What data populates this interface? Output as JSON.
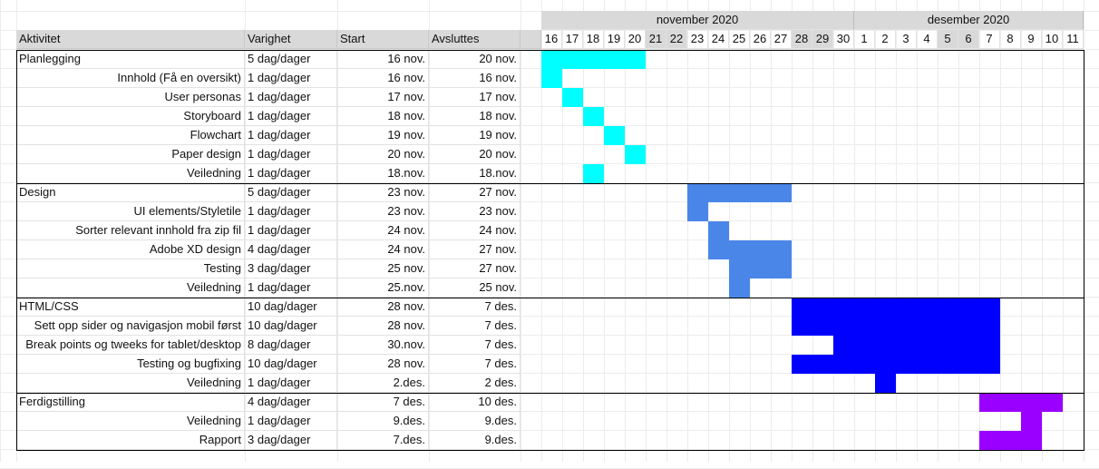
{
  "months": [
    {
      "label": "november 2020",
      "from_day_index": 0,
      "to_day_index": 14
    },
    {
      "label": "desember 2020",
      "from_day_index": 15,
      "to_day_index": 25
    }
  ],
  "columns": {
    "activity": "Aktivitet",
    "duration": "Varighet",
    "start": "Start",
    "end": "Avsluttes"
  },
  "days": [
    {
      "label": "16",
      "weekend": false
    },
    {
      "label": "17",
      "weekend": false
    },
    {
      "label": "18",
      "weekend": false
    },
    {
      "label": "19",
      "weekend": false
    },
    {
      "label": "20",
      "weekend": false
    },
    {
      "label": "21",
      "weekend": true
    },
    {
      "label": "22",
      "weekend": true
    },
    {
      "label": "23",
      "weekend": false
    },
    {
      "label": "24",
      "weekend": false
    },
    {
      "label": "25",
      "weekend": false
    },
    {
      "label": "26",
      "weekend": false
    },
    {
      "label": "27",
      "weekend": false
    },
    {
      "label": "28",
      "weekend": true
    },
    {
      "label": "29",
      "weekend": true
    },
    {
      "label": "30",
      "weekend": false
    },
    {
      "label": "1",
      "weekend": false
    },
    {
      "label": "2",
      "weekend": false
    },
    {
      "label": "3",
      "weekend": false
    },
    {
      "label": "4",
      "weekend": false
    },
    {
      "label": "5",
      "weekend": true
    },
    {
      "label": "6",
      "weekend": true
    },
    {
      "label": "7",
      "weekend": false
    },
    {
      "label": "8",
      "weekend": false
    },
    {
      "label": "9",
      "weekend": false
    },
    {
      "label": "10",
      "weekend": false
    },
    {
      "label": "11",
      "weekend": false
    }
  ],
  "groups": [
    {
      "color": "#00ffff",
      "rows": [
        {
          "name": "Planlegging",
          "indent": false,
          "duration": "5 dag/dager",
          "start": "16 nov.",
          "end": "20 nov.",
          "bar_from": 0,
          "bar_to": 4
        },
        {
          "name": "Innhold (Få en oversikt)",
          "indent": true,
          "duration": "1 dag/dager",
          "start": "16 nov.",
          "end": "16 nov.",
          "bar_from": 0,
          "bar_to": 0
        },
        {
          "name": "User personas",
          "indent": true,
          "duration": "1 dag/dager",
          "start": "17 nov.",
          "end": "17 nov.",
          "bar_from": 1,
          "bar_to": 1
        },
        {
          "name": "Storyboard",
          "indent": true,
          "duration": "1 dag/dager",
          "start": "18 nov.",
          "end": "18 nov.",
          "bar_from": 2,
          "bar_to": 2
        },
        {
          "name": "Flowchart",
          "indent": true,
          "duration": "1 dag/dager",
          "start": "19 nov.",
          "end": "19 nov.",
          "bar_from": 3,
          "bar_to": 3
        },
        {
          "name": "Paper design",
          "indent": true,
          "duration": "1 dag/dager",
          "start": "20 nov.",
          "end": "20 nov.",
          "bar_from": 4,
          "bar_to": 4
        },
        {
          "name": "Veiledning",
          "indent": true,
          "duration": "1 dag/dager",
          "start": "18.nov.",
          "end": "18.nov.",
          "bar_from": 2,
          "bar_to": 2
        }
      ]
    },
    {
      "color": "#4a86e8",
      "rows": [
        {
          "name": "Design",
          "indent": false,
          "duration": "5 dag/dager",
          "start": "23 nov.",
          "end": "27 nov.",
          "bar_from": 7,
          "bar_to": 11
        },
        {
          "name": "UI elements/Styletile",
          "indent": true,
          "duration": "1 dag/dager",
          "start": "23 nov.",
          "end": "23 nov.",
          "bar_from": 7,
          "bar_to": 7
        },
        {
          "name": "Sorter relevant innhold fra zip fil",
          "indent": true,
          "duration": "1 dag/dager",
          "start": "24 nov.",
          "end": "24 nov.",
          "bar_from": 8,
          "bar_to": 8
        },
        {
          "name": "Adobe XD design",
          "indent": true,
          "duration": "4 dag/dager",
          "start": "24 nov.",
          "end": "27 nov.",
          "bar_from": 8,
          "bar_to": 11
        },
        {
          "name": "Testing",
          "indent": true,
          "duration": "3 dag/dager",
          "start": "25 nov.",
          "end": "27 nov.",
          "bar_from": 9,
          "bar_to": 11
        },
        {
          "name": "Veiledning",
          "indent": true,
          "duration": "1 dag/dager",
          "start": "25.nov.",
          "end": "25 nov.",
          "bar_from": 9,
          "bar_to": 9
        }
      ]
    },
    {
      "color": "#0000ff",
      "rows": [
        {
          "name": "HTML/CSS",
          "indent": false,
          "duration": "10 dag/dager",
          "start": "28 nov.",
          "end": "7 des.",
          "bar_from": 12,
          "bar_to": 21
        },
        {
          "name": "Sett opp sider og navigasjon mobil først",
          "indent": true,
          "duration": "10 dag/dager",
          "start": "28 nov.",
          "end": "7 des.",
          "bar_from": 12,
          "bar_to": 21
        },
        {
          "name": "Break points og tweeks for tablet/desktop",
          "indent": true,
          "duration": "8 dag/dager",
          "start": "30.nov.",
          "end": "7 des.",
          "bar_from": 14,
          "bar_to": 21
        },
        {
          "name": "Testing og bugfixing",
          "indent": true,
          "duration": "10 dag/dager",
          "start": "28 nov.",
          "end": "7 des.",
          "bar_from": 12,
          "bar_to": 21
        },
        {
          "name": "Veiledning",
          "indent": true,
          "duration": "1 dag/dager",
          "start": "2.des.",
          "end": "2 des.",
          "bar_from": 16,
          "bar_to": 16
        }
      ]
    },
    {
      "color": "#9900ff",
      "rows": [
        {
          "name": "Ferdigstilling",
          "indent": false,
          "duration": "4 dag/dager",
          "start": "7 des.",
          "end": "10 des.",
          "bar_from": 21,
          "bar_to": 24
        },
        {
          "name": "Veiledning",
          "indent": true,
          "duration": "1 dag/dager",
          "start": "9.des.",
          "end": "9.des.",
          "bar_from": 23,
          "bar_to": 23
        },
        {
          "name": "Rapport",
          "indent": true,
          "duration": "3 dag/dager",
          "start": "7.des.",
          "end": "9.des.",
          "bar_from": 21,
          "bar_to": 23
        }
      ]
    }
  ]
}
